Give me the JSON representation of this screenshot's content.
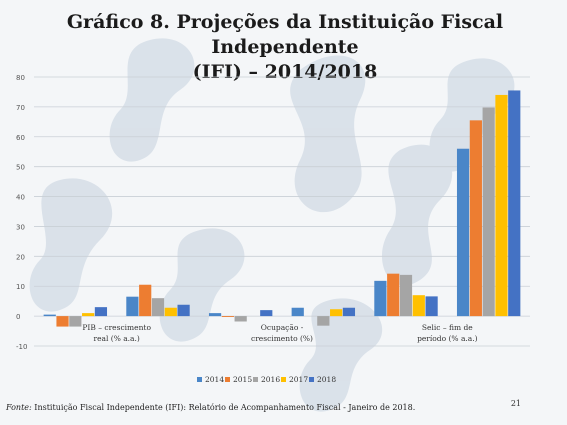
{
  "slide": {
    "title_line1": "Gráfico 8. Projeções da Instituição Fiscal Independente",
    "title_line2": "(IFI) – 2014/2018",
    "source_label": "Fonte:",
    "source_text": "Instituição Fiscal Independente (IFI): Relatório de Acompanhamento Fiscal - Janeiro de 2018.",
    "page_number": "21"
  },
  "colors": {
    "2014": "#4a86c8",
    "2015": "#ed7d31",
    "2016": "#a5a5a5",
    "2017": "#ffc000",
    "2018": "#4472c4"
  },
  "chart_data": {
    "type": "bar",
    "title": "",
    "xlabel": "",
    "ylabel": "",
    "ylim": [
      -10,
      80
    ],
    "yticks": [
      -10,
      0,
      10,
      20,
      30,
      40,
      50,
      60,
      70,
      80
    ],
    "grid": true,
    "legend_position": "bottom",
    "categories": [
      "PIB – crescimento real (% a.a.)",
      "",
      "Ocupação - crescimento (%)",
      "",
      "Selic – fim de período (% a.a.)",
      ""
    ],
    "category_label_lines": [
      [
        "PIB – crescimento",
        "real (% a.a.)"
      ],
      [],
      [
        "Ocupação -",
        "crescimento (%)"
      ],
      [],
      [
        "Selic – fim de",
        "período (% a.a.)"
      ],
      []
    ],
    "series": [
      {
        "name": "2014",
        "values": [
          0.5,
          6.5,
          1.0,
          2.8,
          11.8,
          56.0
        ]
      },
      {
        "name": "2015",
        "values": [
          -3.5,
          10.5,
          -0.3,
          0.0,
          14.2,
          65.5
        ]
      },
      {
        "name": "2016",
        "values": [
          -3.5,
          6.0,
          -1.8,
          -3.2,
          13.8,
          69.8
        ]
      },
      {
        "name": "2017",
        "values": [
          1.0,
          2.8,
          0.0,
          2.3,
          7.0,
          74.0
        ]
      },
      {
        "name": "2018",
        "values": [
          3.0,
          3.8,
          2.0,
          2.8,
          6.6,
          75.5
        ]
      }
    ]
  }
}
